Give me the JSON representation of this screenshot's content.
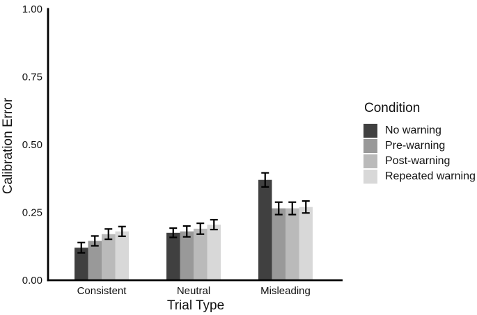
{
  "chart_data": {
    "type": "bar",
    "title": "",
    "xlabel": "Trial Type",
    "ylabel": "Calibration Error",
    "legend_title": "Condition",
    "legend_position": "right",
    "grid": false,
    "ylim": [
      0,
      1
    ],
    "yticks": [
      0,
      0.25,
      0.5,
      0.75,
      1
    ],
    "ytick_labels": [
      "0.00",
      "0.25",
      "0.50",
      "0.75",
      "1.00"
    ],
    "categories": [
      "Consistent",
      "Neutral",
      "Misleading"
    ],
    "series": [
      {
        "name": "No warning",
        "color": "#404040",
        "values": [
          0.12,
          0.175,
          0.37
        ],
        "errors": [
          0.019,
          0.017,
          0.026
        ]
      },
      {
        "name": "Pre-warning",
        "color": "#999999",
        "values": [
          0.145,
          0.18,
          0.265
        ],
        "errors": [
          0.018,
          0.02,
          0.023
        ]
      },
      {
        "name": "Post-warning",
        "color": "#bababa",
        "values": [
          0.17,
          0.19,
          0.265
        ],
        "errors": [
          0.019,
          0.02,
          0.023
        ]
      },
      {
        "name": "Repeated warning",
        "color": "#d8d8d8",
        "values": [
          0.18,
          0.205,
          0.27
        ],
        "errors": [
          0.018,
          0.018,
          0.022
        ]
      }
    ],
    "error_bar_color": "#000000",
    "axis_color": "#000000"
  }
}
